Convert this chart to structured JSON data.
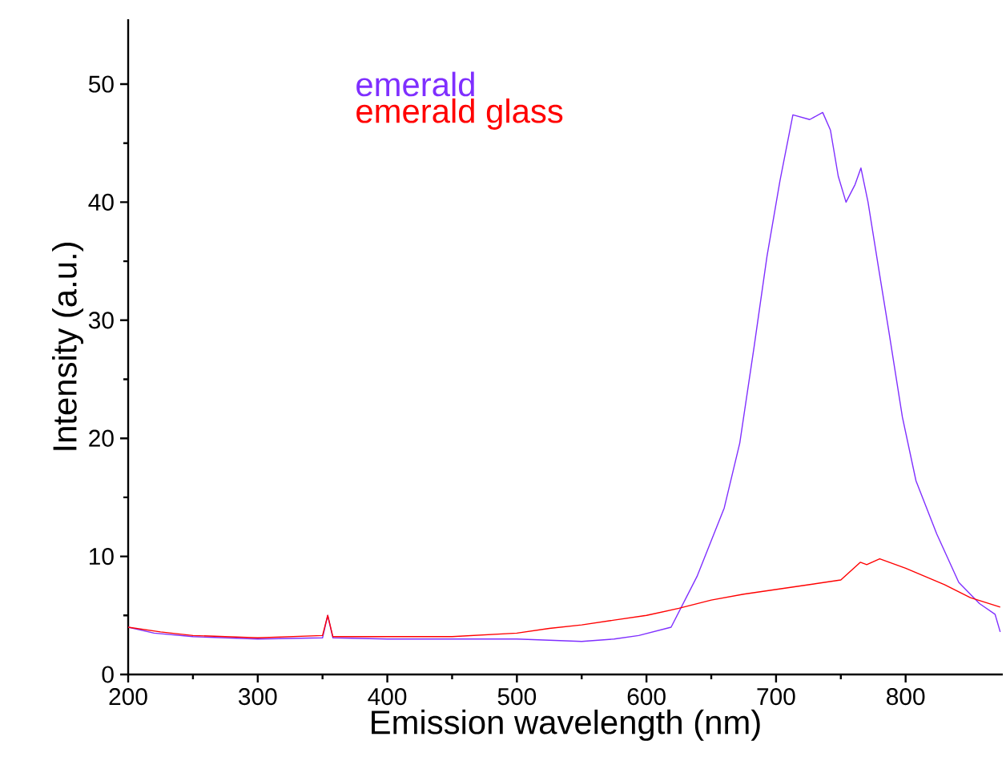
{
  "chart_data": {
    "type": "line",
    "xlabel": "Emission wavelength (nm)",
    "ylabel": "Intensity (a.u.)",
    "xlim": [
      200,
      875
    ],
    "ylim": [
      0,
      55.5
    ],
    "xticks": [
      200,
      300,
      400,
      500,
      600,
      700,
      800
    ],
    "yticks": [
      0,
      10,
      20,
      30,
      40,
      50
    ],
    "grid": false,
    "legend": "top left",
    "marker": "none",
    "line_style": "solid",
    "series": [
      {
        "name": "emerald",
        "color": "#7f2fff",
        "x": [
          200,
          220,
          250,
          300,
          350,
          354,
          358,
          400,
          450,
          500,
          550,
          575,
          594,
          619,
          639,
          660,
          672,
          683,
          693,
          703,
          713,
          726,
          736,
          742,
          748,
          754,
          761,
          765.5,
          771,
          779,
          787,
          797.5,
          808,
          824,
          841,
          857,
          869,
          873
        ],
        "values": [
          4.0,
          3.5,
          3.2,
          3.0,
          3.1,
          5.0,
          3.1,
          3.0,
          3.0,
          3.0,
          2.8,
          3.0,
          3.3,
          4.0,
          8.3,
          14.1,
          19.6,
          27.7,
          35.4,
          41.8,
          47.4,
          47.0,
          47.6,
          46.1,
          42.2,
          40.0,
          41.5,
          42.9,
          40.0,
          34.5,
          29.1,
          21.8,
          16.4,
          11.9,
          7.8,
          6.0,
          5.1,
          3.6
        ]
      },
      {
        "name": "emerald glass",
        "color": "#ff0000",
        "x": [
          200,
          225,
          250,
          300,
          350,
          354,
          358,
          400,
          450,
          500,
          525,
          550,
          575,
          600,
          625,
          650,
          675,
          700,
          725,
          750,
          765,
          770,
          780,
          800,
          830,
          850,
          873
        ],
        "values": [
          4.0,
          3.6,
          3.3,
          3.1,
          3.3,
          5.0,
          3.2,
          3.2,
          3.2,
          3.5,
          3.9,
          4.2,
          4.6,
          5.0,
          5.6,
          6.3,
          6.8,
          7.2,
          7.6,
          8.0,
          9.5,
          9.3,
          9.8,
          9.0,
          7.6,
          6.5,
          5.7
        ]
      }
    ]
  }
}
